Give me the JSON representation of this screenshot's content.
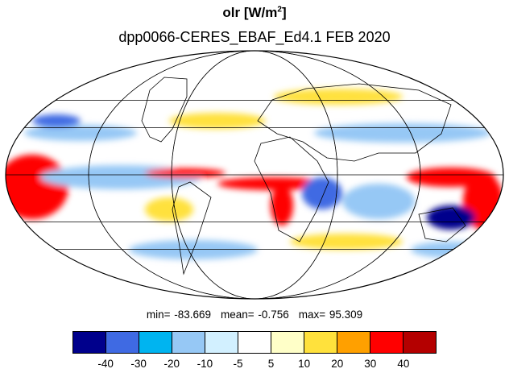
{
  "title": {
    "variable": "olr",
    "unit_open": "[W/m",
    "unit_sup": "2",
    "unit_close": "]",
    "subtitle": "dpp0066-CERES_EBAF_Ed4.1  FEB 2020"
  },
  "stats": {
    "min": "min= -83.669",
    "mean": "mean= -0.756",
    "max": "max= 95.309"
  },
  "colorbar": {
    "colors": [
      "#00008c",
      "#3f6ae3",
      "#00b4f0",
      "#96c8f5",
      "#d2f0ff",
      "#ffffff",
      "#ffffc8",
      "#ffe13c",
      "#ffa000",
      "#ff0000",
      "#b40000"
    ],
    "ticks": [
      "-40",
      "-30",
      "-20",
      "-10",
      "-5",
      "5",
      "10",
      "20",
      "30",
      "40"
    ]
  },
  "map": {
    "projection": "mollweide",
    "graticule": "on",
    "coastlines": "on"
  }
}
